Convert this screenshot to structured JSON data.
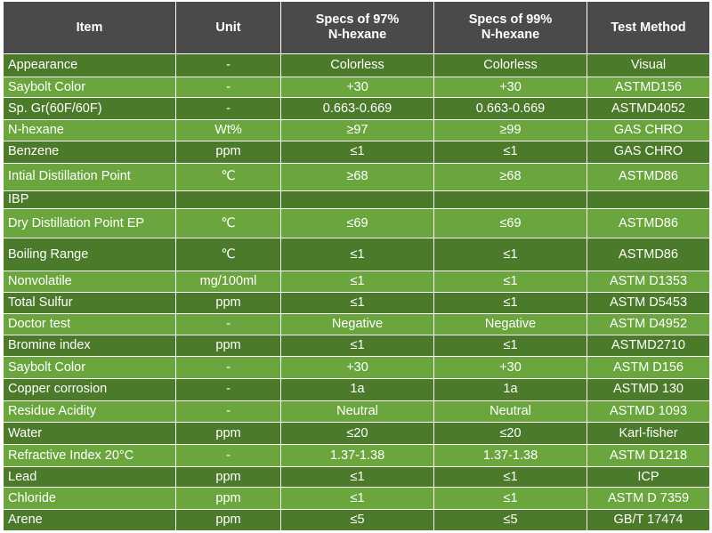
{
  "table": {
    "headers": [
      "Item",
      "Unit",
      "Specs of 97%\nN-hexane",
      "Specs of 99%\nN-hexane",
      "Test Method"
    ],
    "header_lines": {
      "item": "Item",
      "unit": "Unit",
      "s97_l1": "Specs of 97%",
      "s97_l2": "N-hexane",
      "s99_l1": "Specs of 99%",
      "s99_l2": "N-hexane",
      "method": "Test Method"
    },
    "rows": [
      {
        "item": "Appearance",
        "unit": "-",
        "s97": "Colorless",
        "s99": "Colorless",
        "method": "Visual"
      },
      {
        "item": "Saybolt Color",
        "unit": "-",
        "s97": "+30",
        "s99": "+30",
        "method": "ASTMD156"
      },
      {
        "item": "Sp. Gr(60F/60F)",
        "unit": "-",
        "s97": "0.663-0.669",
        "s99": "0.663-0.669",
        "method": "ASTMD4052"
      },
      {
        "item": "N-hexane",
        "unit": "Wt%",
        "s97": "≥97",
        "s99": "≥99",
        "method": "GAS CHRO"
      },
      {
        "item": "Benzene",
        "unit": "ppm",
        "s97": "≤1",
        "s99": "≤1",
        "method": "GAS CHRO"
      },
      {
        "item": "Intial Distillation Point",
        "unit": "℃",
        "s97": "≥68",
        "s99": "≥68",
        "method": "ASTMD86"
      },
      {
        "item": "IBP",
        "unit": "",
        "s97": "",
        "s99": "",
        "method": ""
      },
      {
        "item": "Dry Distillation Point   EP",
        "unit": "℃",
        "s97": "≤69",
        "s99": "≤69",
        "method": "ASTMD86"
      },
      {
        "item": "Boiling Range",
        "unit": "℃",
        "s97": "≤1",
        "s99": "≤1",
        "method": "ASTMD86"
      },
      {
        "item": "Nonvolatile",
        "unit": "mg/100ml",
        "s97": "≤1",
        "s99": "≤1",
        "method": "ASTM D1353"
      },
      {
        "item": "Total Sulfur",
        "unit": "ppm",
        "s97": "≤1",
        "s99": "≤1",
        "method": "ASTM D5453"
      },
      {
        "item": "Doctor test",
        "unit": "-",
        "s97": "Negative",
        "s99": "Negative",
        "method": "ASTM D4952"
      },
      {
        "item": "Bromine index",
        "unit": "ppm",
        "s97": "≤1",
        "s99": "≤1",
        "method": "ASTMD2710"
      },
      {
        "item": "Saybolt Color",
        "unit": "-",
        "s97": "+30",
        "s99": "+30",
        "method": "ASTM D156"
      },
      {
        "item": "Copper corrosion",
        "unit": "-",
        "s97": "1a",
        "s99": "1a",
        "method": "ASTMD 130"
      },
      {
        "item": "Residue Acidity",
        "unit": "-",
        "s97": "Neutral",
        "s99": "Neutral",
        "method": "ASTMD 1093"
      },
      {
        "item": "Water",
        "unit": "ppm",
        "s97": "≤20",
        "s99": "≤20",
        "method": "Karl-fisher"
      },
      {
        "item": "Refractive Index 20°C",
        "unit": "-",
        "s97": "1.37-1.38",
        "s99": "1.37-1.38",
        "method": "ASTM D1218"
      },
      {
        "item": "Lead",
        "unit": "ppm",
        "s97": "≤1",
        "s99": "≤1",
        "method": "ICP"
      },
      {
        "item": "Chloride",
        "unit": "ppm",
        "s97": "≤1",
        "s99": "≤1",
        "method": "ASTM D 7359"
      },
      {
        "item": "Arene",
        "unit": "ppm",
        "s97": "≤5",
        "s99": "≤5",
        "method": "GB/T 17474"
      }
    ]
  },
  "colors": {
    "header_bg": "#4a4a4a",
    "row_dark": "#4b7a2a",
    "row_light": "#6aa63d",
    "text": "#ffffff",
    "border": "#ffffff"
  }
}
